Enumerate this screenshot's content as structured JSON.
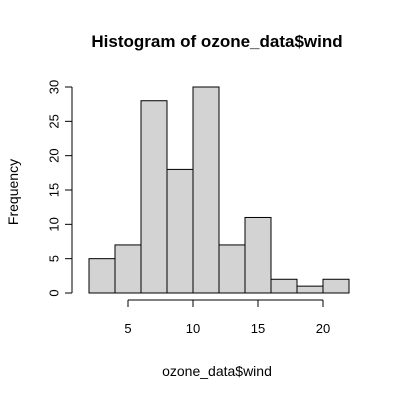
{
  "chart_data": {
    "type": "bar",
    "title": "Histogram of ozone_data$wind",
    "xlabel": "ozone_data$wind",
    "ylabel": "Frequency",
    "bins": [
      {
        "from": 2,
        "to": 4,
        "count": 5
      },
      {
        "from": 4,
        "to": 6,
        "count": 7
      },
      {
        "from": 6,
        "to": 8,
        "count": 28
      },
      {
        "from": 8,
        "to": 10,
        "count": 18
      },
      {
        "from": 10,
        "to": 12,
        "count": 30
      },
      {
        "from": 12,
        "to": 14,
        "count": 7
      },
      {
        "from": 14,
        "to": 16,
        "count": 11
      },
      {
        "from": 16,
        "to": 18,
        "count": 2
      },
      {
        "from": 18,
        "to": 20,
        "count": 1
      },
      {
        "from": 20,
        "to": 22,
        "count": 2
      }
    ],
    "xlim": [
      2,
      22
    ],
    "ylim": [
      0,
      30
    ],
    "xticks": [
      5,
      10,
      15,
      20
    ],
    "yticks": [
      0,
      5,
      10,
      15,
      20,
      25,
      30
    ],
    "bar_color": "#d3d3d3",
    "edge_color": "#000000",
    "grid": false,
    "legend": "none"
  }
}
